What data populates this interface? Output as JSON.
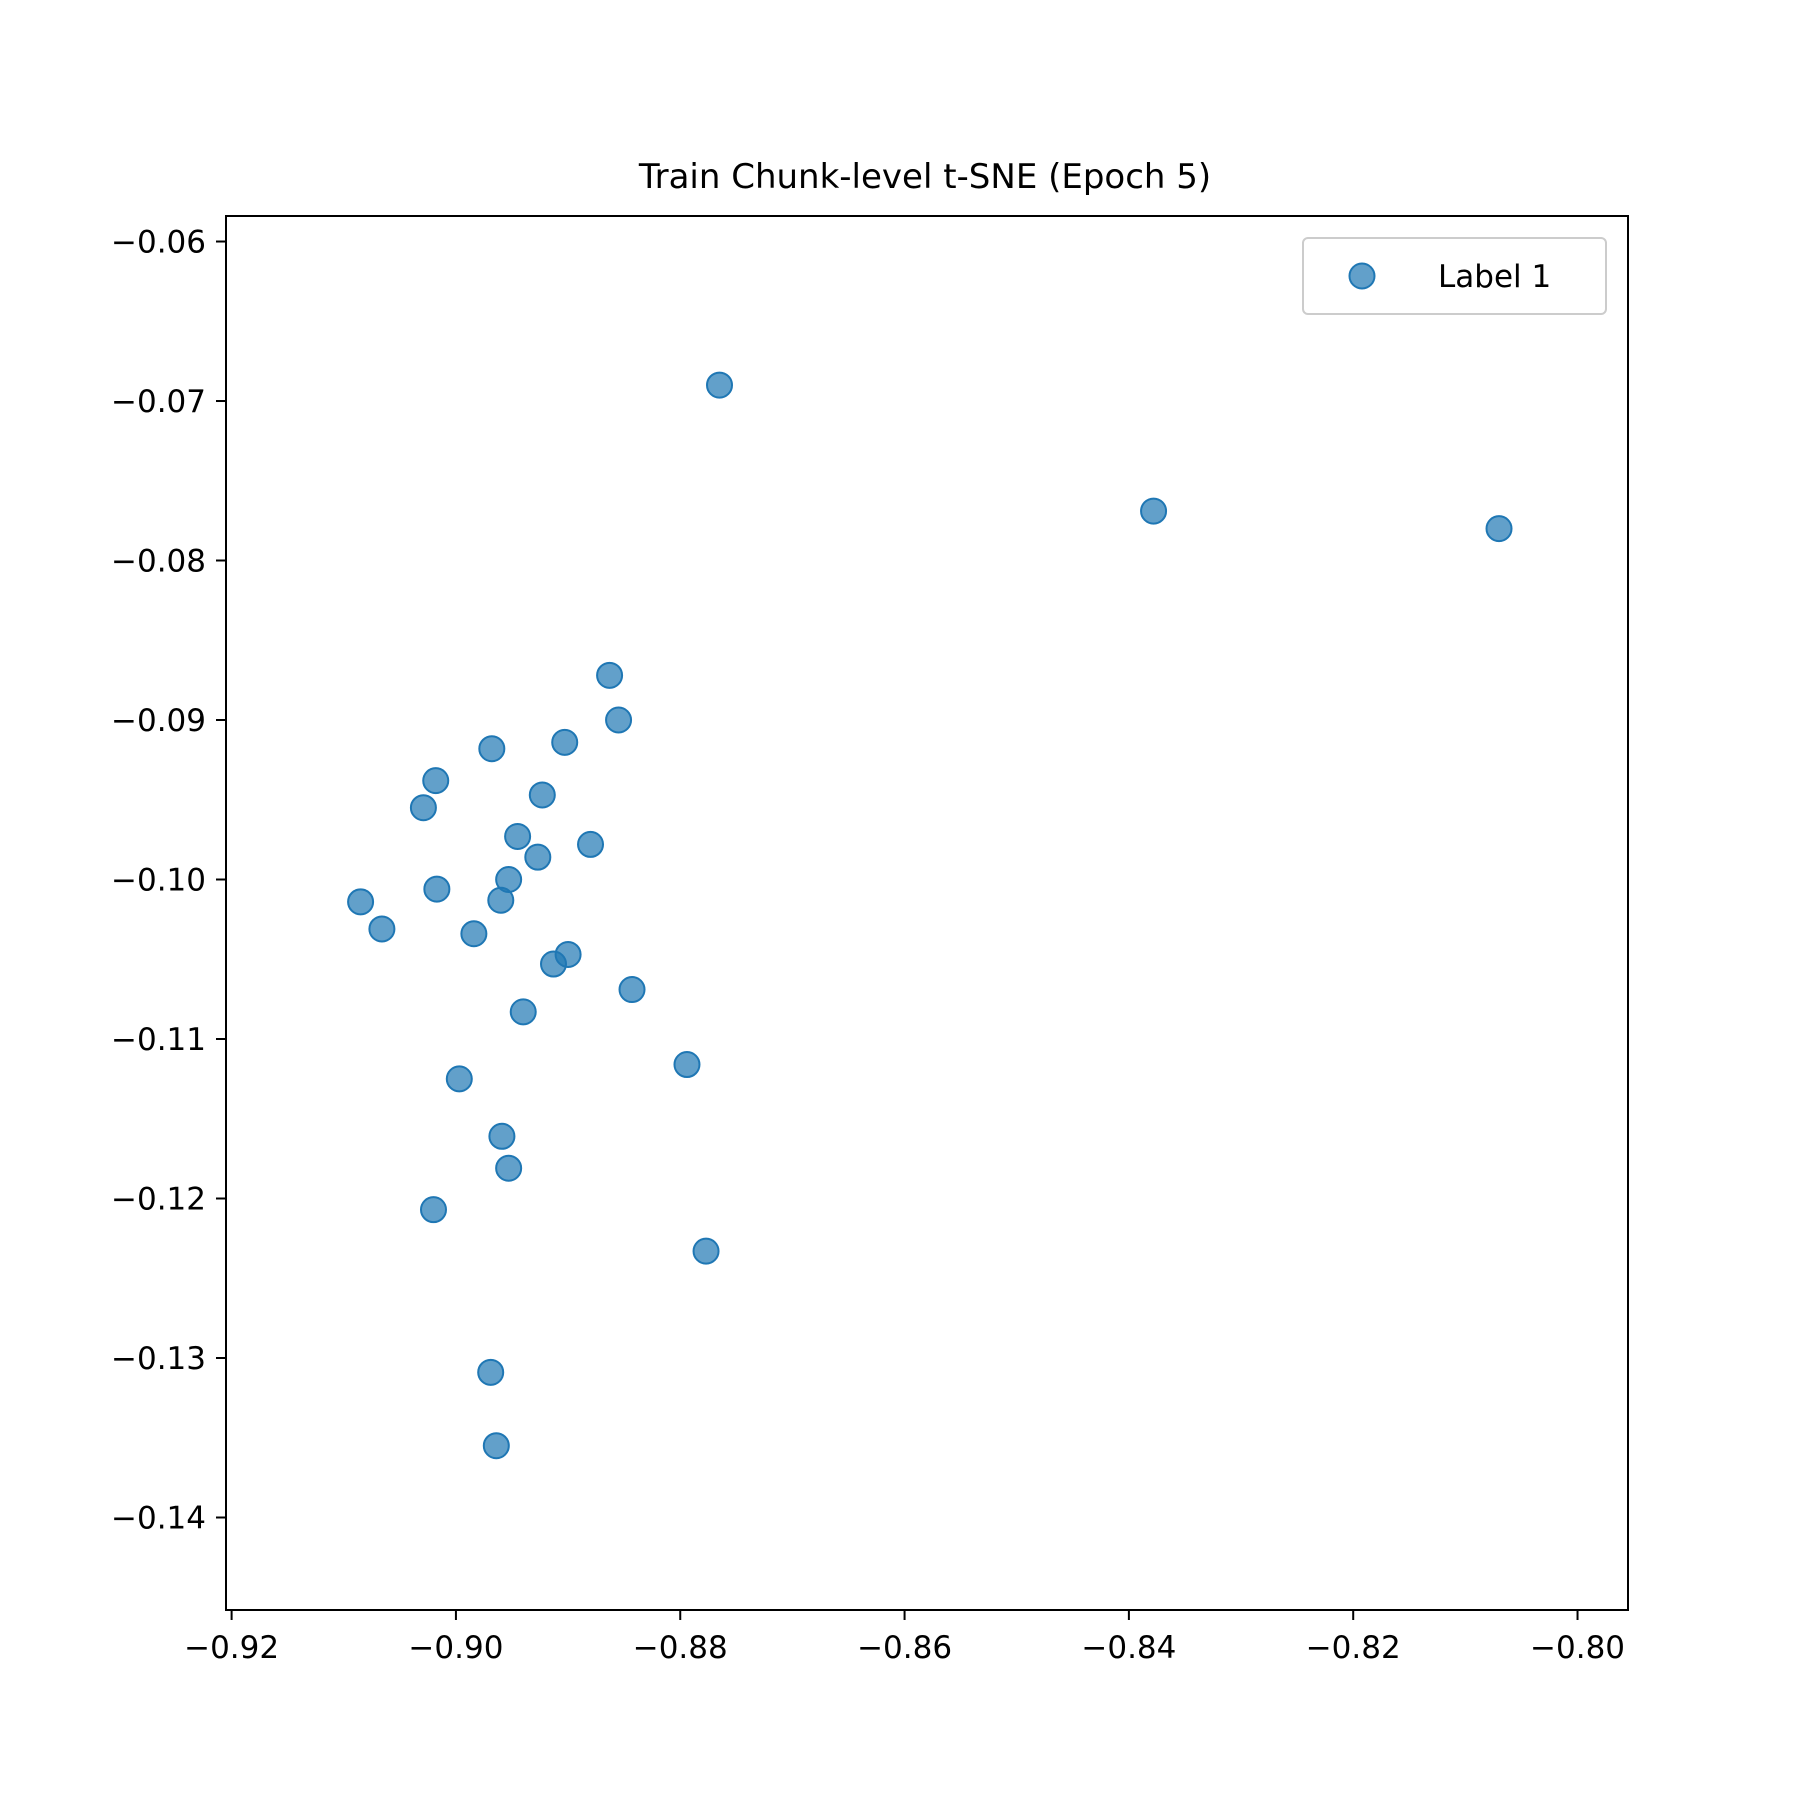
{
  "chart_data": {
    "type": "scatter",
    "title": "Train Chunk-level t-SNE (Epoch 5)",
    "xlabel": "",
    "ylabel": "",
    "xlim": [
      -0.9205,
      -0.7955
    ],
    "ylim": [
      -0.1458,
      -0.0584
    ],
    "x_ticks": [
      -0.92,
      -0.9,
      -0.88,
      -0.86,
      -0.84,
      -0.82,
      -0.8
    ],
    "y_ticks": [
      -0.06,
      -0.07,
      -0.08,
      -0.09,
      -0.1,
      -0.11,
      -0.12,
      -0.13,
      -0.14
    ],
    "x_tick_labels": [
      "−0.92",
      "−0.90",
      "−0.88",
      "−0.86",
      "−0.84",
      "−0.82",
      "−0.80"
    ],
    "y_tick_labels": [
      "−0.06",
      "−0.07",
      "−0.08",
      "−0.09",
      "−0.10",
      "−0.11",
      "−0.12",
      "−0.13",
      "−0.14"
    ],
    "grid": false,
    "legend_position": "top-right",
    "series": [
      {
        "name": "Label 1",
        "color": "#1f77b4",
        "points": [
          {
            "x": -0.8765,
            "y": -0.069
          },
          {
            "x": -0.8378,
            "y": -0.0769
          },
          {
            "x": -0.807,
            "y": -0.078
          },
          {
            "x": -0.8863,
            "y": -0.0872
          },
          {
            "x": -0.8855,
            "y": -0.09
          },
          {
            "x": -0.8903,
            "y": -0.0914
          },
          {
            "x": -0.8968,
            "y": -0.0918
          },
          {
            "x": -0.9018,
            "y": -0.0938
          },
          {
            "x": -0.8923,
            "y": -0.0947
          },
          {
            "x": -0.9029,
            "y": -0.0955
          },
          {
            "x": -0.8945,
            "y": -0.0973
          },
          {
            "x": -0.888,
            "y": -0.0978
          },
          {
            "x": -0.8927,
            "y": -0.0986
          },
          {
            "x": -0.8953,
            "y": -0.1
          },
          {
            "x": -0.9017,
            "y": -0.1006
          },
          {
            "x": -0.9085,
            "y": -0.1014
          },
          {
            "x": -0.896,
            "y": -0.1013
          },
          {
            "x": -0.9066,
            "y": -0.1031
          },
          {
            "x": -0.8984,
            "y": -0.1034
          },
          {
            "x": -0.89,
            "y": -0.1047
          },
          {
            "x": -0.8913,
            "y": -0.1053
          },
          {
            "x": -0.8843,
            "y": -0.1069
          },
          {
            "x": -0.894,
            "y": -0.1083
          },
          {
            "x": -0.8794,
            "y": -0.1116
          },
          {
            "x": -0.8997,
            "y": -0.1125
          },
          {
            "x": -0.8959,
            "y": -0.1161
          },
          {
            "x": -0.8953,
            "y": -0.1181
          },
          {
            "x": -0.902,
            "y": -0.1207
          },
          {
            "x": -0.8777,
            "y": -0.1233
          },
          {
            "x": -0.8969,
            "y": -0.1309
          },
          {
            "x": -0.8964,
            "y": -0.1355
          }
        ]
      }
    ]
  }
}
